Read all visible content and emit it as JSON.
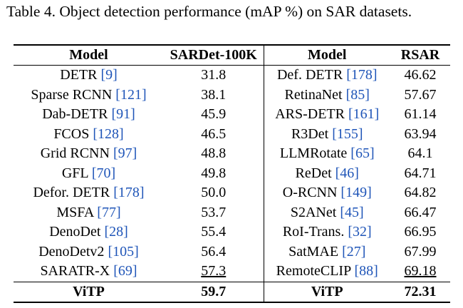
{
  "caption": "Table 4. Object detection performance (mAP %) on SAR datasets.",
  "headers": {
    "model_left": "Model",
    "dataset_left": "SARDet-100K",
    "model_right": "Model",
    "dataset_right": "RSAR"
  },
  "rows": [
    {
      "l_name": "DETR",
      "l_ref": "[9]",
      "l_val": "31.8",
      "r_name": "Def. DETR",
      "r_ref": "[178]",
      "r_val": "46.62"
    },
    {
      "l_name": "Sparse RCNN",
      "l_ref": "[121]",
      "l_val": "38.1",
      "r_name": "RetinaNet",
      "r_ref": "[85]",
      "r_val": "57.67"
    },
    {
      "l_name": "Dab-DETR",
      "l_ref": "[91]",
      "l_val": "45.9",
      "r_name": "ARS-DETR",
      "r_ref": "[161]",
      "r_val": "61.14"
    },
    {
      "l_name": "FCOS",
      "l_ref": "[128]",
      "l_val": "46.5",
      "r_name": "R3Det",
      "r_ref": "[155]",
      "r_val": "63.94"
    },
    {
      "l_name": "Grid RCNN",
      "l_ref": "[97]",
      "l_val": "48.8",
      "r_name": "LLMRotate",
      "r_ref": "[65]",
      "r_val": "64.1"
    },
    {
      "l_name": "GFL",
      "l_ref": "[70]",
      "l_val": "49.8",
      "r_name": "ReDet",
      "r_ref": "[46]",
      "r_val": "64.71"
    },
    {
      "l_name": "Defor. DETR",
      "l_ref": "[178]",
      "l_val": "50.0",
      "r_name": "O-RCNN",
      "r_ref": "[149]",
      "r_val": "64.82"
    },
    {
      "l_name": "MSFA",
      "l_ref": "[77]",
      "l_val": "53.7",
      "r_name": "S2ANet",
      "r_ref": "[45]",
      "r_val": "66.47"
    },
    {
      "l_name": "DenoDet",
      "l_ref": "[28]",
      "l_val": "55.4",
      "r_name": "RoI-Trans.",
      "r_ref": "[32]",
      "r_val": "66.95"
    },
    {
      "l_name": "DenoDetv2",
      "l_ref": "[105]",
      "l_val": "56.4",
      "r_name": "SatMAE",
      "r_ref": "[27]",
      "r_val": "67.99"
    },
    {
      "l_name": "SARATR-X",
      "l_ref": "[69]",
      "l_val": "57.3",
      "r_name": "RemoteCLIP",
      "r_ref": "[88]",
      "r_val": "69.18",
      "underline": true
    }
  ],
  "final": {
    "l_name": "ViTP",
    "l_val": "59.7",
    "r_name": "ViTP",
    "r_val": "72.31"
  },
  "colors": {
    "reference": "#1f55b8",
    "text": "#000000"
  }
}
